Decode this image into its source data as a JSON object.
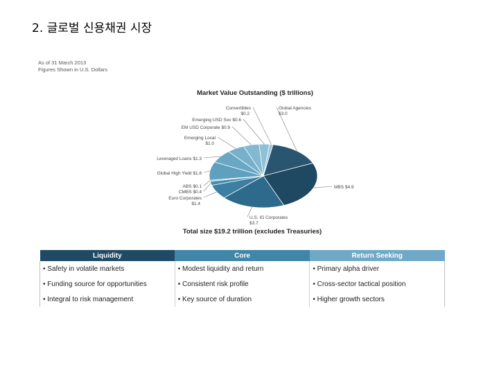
{
  "slide": {
    "title": "2. 글로벌 신용채권 시장"
  },
  "note": {
    "line1": "As of 31 March 2013",
    "line2": "Figures Shown in U.S. Dollars"
  },
  "chart_data": {
    "type": "pie",
    "title": "Market Value Outstanding ($ trillions)",
    "total_label": "Total size $19.2 trillion (excludes Treasuries)",
    "slices": [
      {
        "label": "Global Agencies",
        "value_label": "$3.0",
        "value": 3.0,
        "color": "#2a5570"
      },
      {
        "label": "MBS",
        "value_label": "$4.9",
        "value": 4.9,
        "color": "#1f4863"
      },
      {
        "label": "U.S. IG Corporates",
        "value_label": "$3.7",
        "value": 3.7,
        "color": "#2e6a8c"
      },
      {
        "label": "Euro Corporates",
        "value_label": "$1.4",
        "value": 1.4,
        "color": "#3d7fa3"
      },
      {
        "label": "CMBS",
        "value_label": "$0.4",
        "value": 0.4,
        "color": "#4a8db0"
      },
      {
        "label": "ABS",
        "value_label": "$0.1",
        "value": 0.1,
        "color": "#5599bb"
      },
      {
        "label": "Global High Yield",
        "value_label": "$1.8",
        "value": 1.8,
        "color": "#5f9fbf"
      },
      {
        "label": "Leveraged Loans",
        "value_label": "$1.3",
        "value": 1.3,
        "color": "#6aa7c5"
      },
      {
        "label": "Emerging Local",
        "value_label": "$1.0",
        "value": 1.0,
        "color": "#76b0cb"
      },
      {
        "label": "EM USD Corporate",
        "value_label": "$0.9",
        "value": 0.9,
        "color": "#82b8d1"
      },
      {
        "label": "Emerging USD Sov",
        "value_label": "$0.6",
        "value": 0.6,
        "color": "#8ec0d6"
      },
      {
        "label": "Convertibles",
        "value_label": "$0.2",
        "value": 0.2,
        "color": "#9ac8dc"
      }
    ]
  },
  "table": {
    "headers": [
      {
        "label": "Liquidity",
        "color": "#1e4a66"
      },
      {
        "label": "Core",
        "color": "#3f86a8"
      },
      {
        "label": "Return Seeking",
        "color": "#6fa9c7"
      }
    ],
    "rows": [
      [
        "• Safety in volatile markets",
        "• Modest liquidity and return",
        "• Primary alpha driver"
      ],
      [
        "• Funding source for opportunities",
        "• Consistent risk profile",
        "• Cross-sector tactical position"
      ],
      [
        "• Integral to risk management",
        "• Key source of duration",
        "• Higher growth sectors"
      ]
    ]
  }
}
